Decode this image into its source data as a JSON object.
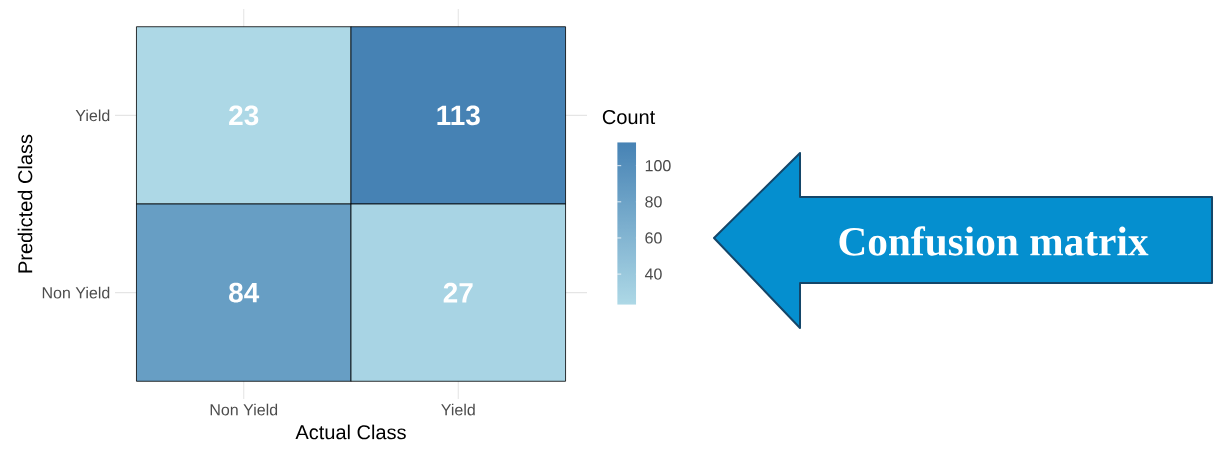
{
  "chart_data": {
    "type": "heatmap",
    "categories": [
      "Non Yield",
      "Yield"
    ],
    "y_categories": [
      "Yield",
      "Non Yield"
    ],
    "cells": [
      [
        23,
        113
      ],
      [
        84,
        27
      ]
    ],
    "data_labels": true,
    "xlabel": "Actual Class",
    "ylabel": "Predicted Class",
    "clabel": "Count",
    "clim": [
      23,
      113
    ],
    "cticks": [
      40,
      60,
      80,
      100
    ],
    "grid": true,
    "annotations": [
      "Confusion matrix"
    ]
  }
}
